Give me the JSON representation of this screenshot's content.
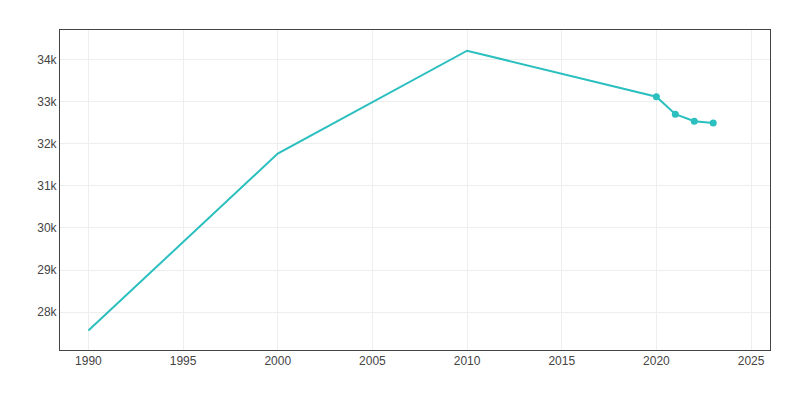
{
  "chart_data": {
    "type": "line",
    "x": [
      1990,
      2000,
      2010,
      2020,
      2021,
      2022,
      2023
    ],
    "series": [
      {
        "type": "line",
        "color": "#2bbfbf",
        "values": [
          27562,
          31765,
          34208,
          33116,
          32701,
          32534,
          32490
        ]
      },
      {
        "type": "scatter",
        "marker": "circle",
        "color": "#2bbfbf",
        "values": [
          null,
          null,
          null,
          33116,
          32701,
          32534,
          32490
        ]
      }
    ],
    "xlim": [
      1988.5,
      2026
    ],
    "ylim": [
      27100,
      34700
    ],
    "xticks": [
      1990,
      1995,
      2000,
      2005,
      2010,
      2015,
      2020,
      2025
    ],
    "yticks": [
      {
        "value": 28000,
        "label": "28k"
      },
      {
        "value": 29000,
        "label": "29k"
      },
      {
        "value": 30000,
        "label": "30k"
      },
      {
        "value": 31000,
        "label": "31k"
      },
      {
        "value": 32000,
        "label": "32k"
      },
      {
        "value": 33000,
        "label": "33k"
      },
      {
        "value": 34000,
        "label": "34k"
      }
    ],
    "grid": true
  }
}
